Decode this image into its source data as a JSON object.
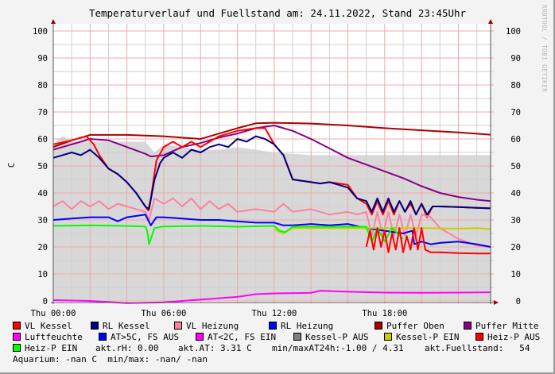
{
  "title": "Temperaturverlauf und Fuellstand am: 24.11.2022, Stand 23:45Uhr",
  "watermark": "RRDTOOL / TOBI OETIKER",
  "legend": {
    "items": [
      {
        "label": "VL Kessel",
        "color": "#ff0000"
      },
      {
        "label": "RL Kessel",
        "color": "#000080"
      },
      {
        "label": "VL Heizung",
        "color": "#ff80a0"
      },
      {
        "label": "RL Heizung",
        "color": "#0000ff"
      },
      {
        "label": "Puffer Oben",
        "color": "#aa0000"
      },
      {
        "label": "Puffer Mitte",
        "color": "#880088"
      },
      {
        "label": "Luftfeuchte",
        "color": "#ff00ff"
      },
      {
        "label": "AT>5C, FS AUS",
        "color": "#0000ff"
      },
      {
        "label": "AT<2C, FS EIN",
        "color": "#ff00ff"
      },
      {
        "label": "Kessel-P AUS",
        "color": "#808080"
      },
      {
        "label": "Kessel-P EIN",
        "color": "#cccc00"
      },
      {
        "label": "Heiz-P AUS",
        "color": "#ff0000"
      },
      {
        "label": "Heiz-P EIN",
        "color": "#00ff00"
      }
    ],
    "rh": "akt.rH: 0.00",
    "at": "akt.AT: 3.31 C",
    "minmax_at": "min/maxAT24h:-1.00 / 4.31",
    "fuellstand": "akt.Fuellstand:   54",
    "aquarium": "Aquarium: -nan C  min/max: -nan/ -nan"
  },
  "chart_data": {
    "type": "line",
    "title": "Temperaturverlauf und Fuellstand am: 24.11.2022, Stand 23:45Uhr",
    "ylabel": "C",
    "xlabel": "",
    "ylim": [
      0,
      100
    ],
    "xlim_hours": [
      0,
      23.75
    ],
    "yticks": [
      "0",
      "10",
      "20",
      "30",
      "40",
      "50",
      "60",
      "70",
      "80",
      "90",
      "100"
    ],
    "xticks": [
      {
        "label": "Thu 00:00",
        "h": 0
      },
      {
        "label": "Thu 06:00",
        "h": 6
      },
      {
        "label": "Thu 12:00",
        "h": 12
      },
      {
        "label": "Thu 18:00",
        "h": 18
      }
    ],
    "grid": true,
    "legend": "bottom",
    "area": {
      "name": "Kessel-P AUS",
      "color": "#d8d8d8",
      "x": [
        0,
        0.5,
        1,
        2,
        3,
        4,
        5,
        5.5,
        6,
        7,
        8,
        9,
        10,
        11,
        12,
        13,
        14,
        16,
        18,
        20,
        22,
        23.75
      ],
      "y": [
        58,
        61,
        59,
        59,
        59,
        59,
        59,
        55,
        58,
        57,
        56,
        56,
        57,
        56,
        55,
        54.5,
        54,
        54,
        54,
        54,
        54,
        54
      ]
    },
    "series": [
      {
        "name": "Puffer Oben",
        "color": "#aa0000",
        "x": [
          0,
          1,
          2,
          4,
          6,
          8,
          9,
          10,
          11,
          12,
          14,
          16,
          18,
          20,
          22,
          23.75
        ],
        "y": [
          57,
          59.5,
          61.5,
          61.5,
          61,
          60,
          62,
          64,
          65.8,
          66,
          65.7,
          65,
          64,
          63.2,
          62.4,
          61.6
        ]
      },
      {
        "name": "Puffer Mitte",
        "color": "#880088",
        "x": [
          0,
          1,
          2,
          3,
          4,
          5,
          5.3,
          6,
          7,
          8,
          9,
          10,
          11,
          12,
          13,
          14,
          15,
          16,
          17,
          18,
          19,
          20,
          21,
          22,
          23,
          23.75
        ],
        "y": [
          56,
          58,
          60,
          59.5,
          57,
          54.5,
          53.5,
          54,
          57,
          58.5,
          60.5,
          62,
          64,
          65,
          63,
          60,
          56.5,
          53,
          50.5,
          48,
          45.5,
          42.5,
          40,
          38.5,
          37.5,
          37
        ]
      },
      {
        "name": "VL Kessel",
        "color": "#ff0000",
        "x": [
          0,
          1,
          1.8,
          2.2,
          2.5,
          3,
          3.5,
          4,
          4.5,
          5,
          5.15,
          5.3,
          5.6,
          6,
          6.5,
          7,
          7.5,
          8,
          8.5,
          9,
          10,
          11,
          11.5,
          12,
          12.5,
          13,
          13.5,
          14,
          14.5,
          15,
          16,
          16.5,
          17,
          17.3,
          17.6,
          17.9,
          18.2,
          18.5,
          18.8,
          19.1,
          19.4,
          19.7,
          20,
          20.3,
          20.6,
          21,
          22,
          23,
          23.75
        ],
        "y": [
          58,
          59.5,
          61,
          58,
          54,
          49,
          47,
          44,
          40,
          35,
          33.5,
          38,
          52,
          57,
          59,
          57,
          59,
          57,
          59,
          61,
          63,
          64,
          64,
          58,
          54,
          45,
          44.5,
          44,
          43.5,
          44,
          43,
          38,
          36,
          32,
          37,
          32,
          37,
          32,
          37,
          33,
          36,
          32,
          36,
          31,
          35,
          35,
          34.8,
          34.5,
          34.3
        ]
      },
      {
        "name": "RL Kessel",
        "color": "#000080",
        "x": [
          0,
          0.5,
          1,
          1.5,
          2,
          2.5,
          3,
          3.5,
          4,
          4.5,
          5,
          5.2,
          5.5,
          5.8,
          6,
          6.5,
          7,
          7.5,
          8,
          8.5,
          9,
          9.5,
          10,
          10.5,
          11,
          11.5,
          12,
          12.5,
          13,
          13.5,
          14,
          14.5,
          15,
          16,
          16.5,
          17,
          17.3,
          17.6,
          17.9,
          18.2,
          18.5,
          18.8,
          19.1,
          19.4,
          19.7,
          20,
          20.3,
          20.6,
          21,
          22,
          23,
          23.75
        ],
        "y": [
          53,
          54,
          55,
          54,
          56,
          53,
          49,
          47,
          44,
          40,
          35,
          34,
          45,
          51,
          53,
          55,
          53,
          56,
          55,
          57,
          58,
          57,
          60,
          59,
          61,
          60,
          58,
          54,
          45,
          44.5,
          44,
          43.5,
          44,
          42,
          38,
          37,
          33,
          38,
          33,
          38,
          33,
          37,
          33,
          37,
          32,
          36,
          32,
          35,
          35,
          34.8,
          34.5,
          34.3
        ]
      },
      {
        "name": "VL Heizung",
        "color": "#ff80a0",
        "x": [
          0,
          0.5,
          1,
          1.5,
          2,
          2.5,
          3,
          3.5,
          4,
          4.5,
          5,
          5.2,
          5.5,
          6,
          6.5,
          7,
          7.5,
          8,
          8.5,
          9,
          9.5,
          10,
          11,
          12,
          12.5,
          13,
          14,
          15,
          16,
          16.5,
          17,
          17.3,
          17.6,
          17.9,
          18.2,
          18.5,
          18.8,
          19.1,
          19.4,
          19.7,
          20,
          20.5,
          21,
          22,
          23,
          23.75
        ],
        "y": [
          35,
          37,
          34,
          37,
          35,
          37,
          34,
          36,
          35,
          34,
          33,
          30,
          38,
          36,
          38,
          35,
          38,
          34,
          37,
          34,
          36,
          33,
          34,
          33,
          36,
          33,
          34,
          32,
          33,
          32,
          33,
          24,
          33,
          24,
          33,
          24,
          32,
          24,
          32,
          24,
          32,
          31,
          27,
          23,
          20.5,
          20
        ]
      },
      {
        "name": "RL Heizung",
        "color": "#0000ff",
        "x": [
          0,
          1,
          2,
          3,
          3.5,
          4,
          5,
          5.3,
          5.6,
          6,
          7,
          8,
          9,
          10,
          11,
          12,
          12.5,
          13,
          14,
          15,
          16,
          17,
          18,
          19,
          19.5,
          19.6,
          20,
          20.5,
          21,
          22,
          23,
          23.75
        ],
        "y": [
          30,
          30.5,
          31,
          31,
          29.5,
          31,
          32,
          28,
          31,
          31,
          30.5,
          30,
          30,
          29.5,
          29,
          29,
          28,
          28,
          28.5,
          28,
          28.5,
          27,
          26,
          25,
          26,
          21,
          22,
          21,
          21.5,
          22,
          21,
          20
        ]
      },
      {
        "name": "Luftfeuchte",
        "color": "#ff00ff",
        "x": [
          0,
          2,
          4,
          6,
          8,
          10,
          11,
          12,
          14,
          14.5,
          16,
          18,
          20,
          22,
          23.75
        ],
        "y": [
          0.3,
          0,
          -0.8,
          -0.5,
          0.5,
          1.5,
          2.5,
          2.8,
          3,
          3.8,
          3.4,
          3.1,
          3,
          3.1,
          3.2
        ]
      },
      {
        "name": "Kessel-P EIN",
        "color": "#cccc00",
        "x": [
          12,
          12.5,
          13,
          14,
          16,
          18,
          20,
          22,
          23,
          23.75
        ],
        "y": [
          26.5,
          25,
          27,
          27,
          27,
          27,
          27,
          26.8,
          27,
          26.6
        ]
      },
      {
        "name": "Heiz-P EIN",
        "color": "#00ff00",
        "x": [
          0,
          2,
          4,
          5,
          5.1,
          5.2,
          5.5,
          6,
          8,
          10,
          12,
          12.3,
          12.6,
          13,
          15,
          17,
          17.3,
          17.6,
          18,
          18.4,
          19
        ],
        "y": [
          27.8,
          28,
          27.8,
          27.6,
          26,
          21,
          27,
          27.6,
          27.8,
          27.5,
          27.8,
          26,
          25.5,
          27.5,
          27.5,
          27.5,
          22,
          27,
          22,
          27,
          23
        ]
      },
      {
        "name": "Heiz-P AUS",
        "color": "#ff0000",
        "x": [
          17,
          17.2,
          17.4,
          17.6,
          17.8,
          18,
          18.2,
          18.4,
          18.6,
          18.8,
          19,
          19.2,
          19.4,
          19.6,
          19.8,
          20,
          20.2,
          20.5,
          21,
          22,
          23,
          23.75
        ],
        "y": [
          20,
          26,
          19,
          27,
          20,
          26,
          18,
          25,
          19,
          27,
          18,
          24,
          19,
          27,
          19,
          27,
          19,
          18,
          18,
          17.7,
          17.6,
          17.6
        ]
      }
    ]
  }
}
